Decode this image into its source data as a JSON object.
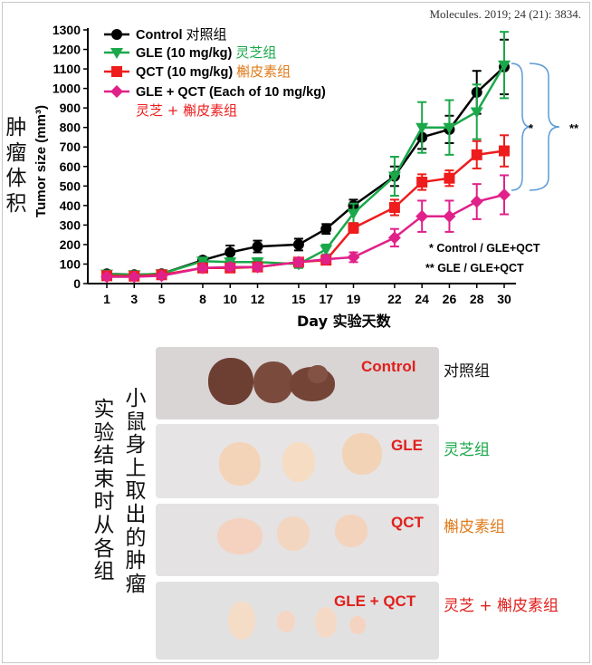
{
  "citation": "Molecules. 2019; 24 (21): 3834.",
  "chart_data": {
    "type": "line",
    "x": [
      1,
      3,
      5,
      8,
      10,
      12,
      15,
      17,
      19,
      22,
      24,
      26,
      28,
      30
    ],
    "xlabel": "Day 实验天数",
    "ylabel": "Tumor size (mm³)",
    "ylabel_cn": "肿瘤体积",
    "ylim": [
      0,
      1300
    ],
    "yticks": [
      0,
      100,
      200,
      300,
      400,
      500,
      600,
      700,
      800,
      900,
      1000,
      1100,
      1200,
      1300
    ],
    "series": [
      {
        "name": "Control 对照组",
        "color": "#000000",
        "marker": "circle",
        "values": [
          50,
          45,
          50,
          120,
          160,
          190,
          200,
          280,
          400,
          550,
          750,
          790,
          980,
          1110
        ],
        "errors": [
          10,
          10,
          10,
          15,
          35,
          30,
          30,
          25,
          30,
          50,
          60,
          70,
          110,
          140
        ]
      },
      {
        "name": "GLE (10 mg/kg) 灵芝组",
        "color": "#1aa84a",
        "marker": "triangle-down",
        "values": [
          48,
          45,
          50,
          115,
          110,
          110,
          100,
          175,
          360,
          550,
          800,
          800,
          880,
          1120
        ],
        "errors": [
          10,
          10,
          10,
          15,
          20,
          20,
          20,
          25,
          50,
          100,
          130,
          140,
          140,
          170
        ]
      },
      {
        "name": "QCT (10 mg/kg) 槲皮素组",
        "color": "#ee1c1c",
        "marker": "square",
        "values": [
          40,
          38,
          45,
          80,
          80,
          85,
          110,
          120,
          285,
          390,
          520,
          540,
          660,
          680
        ],
        "errors": [
          10,
          10,
          10,
          12,
          15,
          15,
          20,
          20,
          25,
          40,
          40,
          40,
          70,
          80
        ]
      },
      {
        "name": "GLE + QCT (Each of 10 mg/kg) 灵芝 + 槲皮素组",
        "color": "#e0218a",
        "marker": "diamond",
        "values": [
          35,
          35,
          40,
          80,
          85,
          85,
          110,
          125,
          135,
          235,
          345,
          345,
          420,
          455
        ],
        "errors": [
          10,
          10,
          10,
          12,
          15,
          15,
          20,
          20,
          25,
          45,
          80,
          80,
          90,
          100
        ]
      }
    ],
    "legend_cn_colors": [
      "#000000",
      "#1aa84a",
      "#e07b1c",
      "#ee1c1c"
    ],
    "annotations": {
      "sig1": "*",
      "sig2": "**",
      "note1": "*  Control / GLE+QCT",
      "note2": "** GLE / GLE+QCT"
    }
  },
  "legend_text": {
    "control": "Control",
    "control_cn": "对照组",
    "gle": "GLE (10 mg/kg)",
    "gle_cn": "灵芝组",
    "qct": "QCT (10 mg/kg)",
    "qct_cn": "槲皮素组",
    "combo": "GLE + QCT (Each of 10 mg/kg)",
    "combo_cn": "灵芝 + 槲皮素组"
  },
  "photos": {
    "left_caption": [
      "实",
      "验",
      "结",
      "束",
      "时",
      "从",
      "各",
      "组"
    ],
    "right_caption": [
      "小",
      "鼠",
      "身",
      "上",
      "取",
      "出",
      "的",
      "肿",
      "瘤"
    ],
    "panels": [
      {
        "label": "Control",
        "label_color": "#e0201c",
        "cn": "对照组",
        "cn_color": "#111111"
      },
      {
        "label": "GLE",
        "label_color": "#e0201c",
        "cn": "灵芝组",
        "cn_color": "#1aa84a"
      },
      {
        "label": "QCT",
        "label_color": "#e0201c",
        "cn": "槲皮素组",
        "cn_color": "#e07b1c"
      },
      {
        "label": "GLE + QCT",
        "label_color": "#e0201c",
        "cn": "灵芝 + 槲皮素组",
        "cn_color": "#e0201c"
      }
    ]
  }
}
